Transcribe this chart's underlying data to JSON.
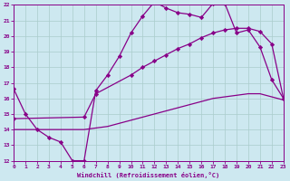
{
  "xlabel": "Windchill (Refroidissement éolien,°C)",
  "bg_color": "#cde8f0",
  "line_color": "#880088",
  "grid_color": "#aacccc",
  "xlim": [
    0,
    23
  ],
  "ylim": [
    12,
    22
  ],
  "xticks": [
    0,
    1,
    2,
    3,
    4,
    5,
    6,
    7,
    8,
    9,
    10,
    11,
    12,
    13,
    14,
    15,
    16,
    17,
    18,
    19,
    20,
    21,
    22,
    23
  ],
  "yticks": [
    12,
    13,
    14,
    15,
    16,
    17,
    18,
    19,
    20,
    21,
    22
  ],
  "series1_x": [
    0,
    1,
    2,
    3,
    4,
    5,
    6,
    7,
    8,
    9,
    10,
    11,
    12,
    13,
    14,
    15,
    16,
    17,
    18,
    19,
    20,
    21,
    22,
    23
  ],
  "series1_y": [
    16.6,
    15.0,
    14.0,
    13.5,
    13.2,
    12.0,
    12.0,
    16.5,
    17.5,
    18.7,
    20.2,
    21.3,
    22.2,
    21.8,
    21.5,
    21.4,
    21.2,
    22.1,
    22.1,
    20.2,
    20.4,
    19.3,
    17.2,
    16.0
  ],
  "series2_x": [
    0,
    6,
    7,
    10,
    11,
    12,
    13,
    14,
    15,
    16,
    17,
    18,
    19,
    20,
    21,
    22,
    23
  ],
  "series2_y": [
    14.7,
    14.8,
    16.3,
    17.5,
    18.0,
    18.4,
    18.8,
    19.2,
    19.5,
    19.9,
    20.2,
    20.4,
    20.5,
    20.5,
    20.3,
    19.5,
    16.0
  ],
  "series3_x": [
    0,
    1,
    2,
    3,
    4,
    5,
    6,
    7,
    8,
    9,
    10,
    11,
    12,
    13,
    14,
    15,
    16,
    17,
    18,
    19,
    20,
    21,
    22,
    23
  ],
  "series3_y": [
    14.0,
    14.0,
    14.0,
    14.0,
    14.0,
    14.0,
    14.0,
    14.1,
    14.2,
    14.4,
    14.6,
    14.8,
    15.0,
    15.2,
    15.4,
    15.6,
    15.8,
    16.0,
    16.1,
    16.2,
    16.3,
    16.3,
    16.1,
    15.9
  ],
  "marker": "D",
  "markersize": 2.2,
  "linewidth": 0.9
}
